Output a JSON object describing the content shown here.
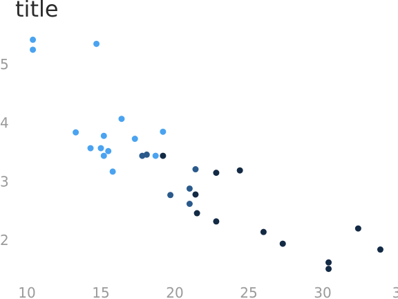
{
  "chart_data": {
    "type": "scatter",
    "title": "title",
    "xlabel": "",
    "ylabel": "",
    "xlim": [
      9.2,
      34.2
    ],
    "ylim": [
      1.3,
      5.6
    ],
    "grid": false,
    "legend": "none",
    "x_ticks": [
      "10",
      "15",
      "20",
      "25",
      "30",
      "3"
    ],
    "y_ticks": [
      "2",
      "3",
      "4",
      "5"
    ],
    "points": [
      {
        "x": 10.4,
        "y": 5.42,
        "color": "#4aa3f0"
      },
      {
        "x": 10.4,
        "y": 5.25,
        "color": "#4aa3f0"
      },
      {
        "x": 14.7,
        "y": 5.35,
        "color": "#4aa3f0"
      },
      {
        "x": 16.4,
        "y": 4.07,
        "color": "#4aa3f0"
      },
      {
        "x": 13.3,
        "y": 3.84,
        "color": "#4aa3f0"
      },
      {
        "x": 15.2,
        "y": 3.78,
        "color": "#4aa3f0"
      },
      {
        "x": 17.3,
        "y": 3.73,
        "color": "#4aa3f0"
      },
      {
        "x": 19.2,
        "y": 3.85,
        "color": "#4aa3f0"
      },
      {
        "x": 14.3,
        "y": 3.57,
        "color": "#4aa3f0"
      },
      {
        "x": 15.0,
        "y": 3.57,
        "color": "#4aa3f0"
      },
      {
        "x": 15.5,
        "y": 3.52,
        "color": "#4aa3f0"
      },
      {
        "x": 15.2,
        "y": 3.44,
        "color": "#4aa3f0"
      },
      {
        "x": 18.7,
        "y": 3.44,
        "color": "#4aa3f0"
      },
      {
        "x": 15.8,
        "y": 3.17,
        "color": "#4aa3f0"
      },
      {
        "x": 17.8,
        "y": 3.44,
        "color": "#2a5a8c"
      },
      {
        "x": 18.1,
        "y": 3.46,
        "color": "#2a5a8c"
      },
      {
        "x": 21.4,
        "y": 3.21,
        "color": "#2a5a8c"
      },
      {
        "x": 21.0,
        "y": 2.88,
        "color": "#2a5a8c"
      },
      {
        "x": 19.7,
        "y": 2.77,
        "color": "#2a5a8c"
      },
      {
        "x": 21.0,
        "y": 2.62,
        "color": "#2a5a8c"
      },
      {
        "x": 19.2,
        "y": 3.44,
        "color": "#132a45"
      },
      {
        "x": 22.8,
        "y": 3.15,
        "color": "#132a45"
      },
      {
        "x": 24.4,
        "y": 3.19,
        "color": "#132a45"
      },
      {
        "x": 21.4,
        "y": 2.78,
        "color": "#132a45"
      },
      {
        "x": 21.5,
        "y": 2.46,
        "color": "#132a45"
      },
      {
        "x": 22.8,
        "y": 2.32,
        "color": "#132a45"
      },
      {
        "x": 26.0,
        "y": 2.14,
        "color": "#132a45"
      },
      {
        "x": 27.3,
        "y": 1.94,
        "color": "#132a45"
      },
      {
        "x": 32.4,
        "y": 2.2,
        "color": "#132a45"
      },
      {
        "x": 33.9,
        "y": 1.84,
        "color": "#132a45"
      },
      {
        "x": 30.4,
        "y": 1.62,
        "color": "#132a45"
      },
      {
        "x": 30.4,
        "y": 1.51,
        "color": "#132a45"
      }
    ]
  }
}
